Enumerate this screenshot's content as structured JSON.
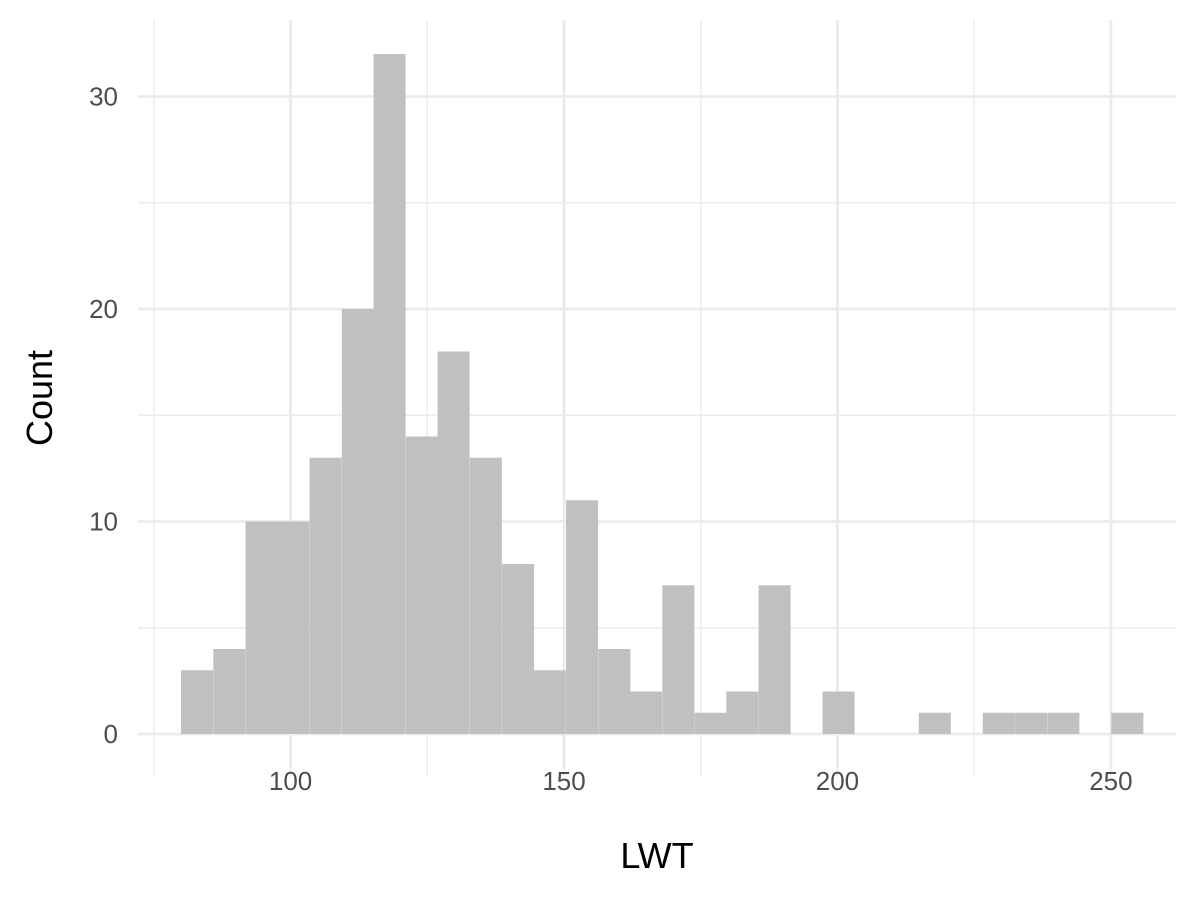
{
  "chart_data": {
    "type": "bar",
    "subtype": "histogram",
    "xlabel": "LWT",
    "ylabel": "Count",
    "xlim": [
      72.1,
      261.9
    ],
    "ylim": [
      -1.6,
      33.6
    ],
    "x_ticks": [
      100,
      150,
      200,
      250
    ],
    "y_ticks": [
      0,
      10,
      20,
      30
    ],
    "bin_width": 5.86,
    "bins": [
      {
        "x": 82.9,
        "count": 3
      },
      {
        "x": 88.8,
        "count": 4
      },
      {
        "x": 94.7,
        "count": 10
      },
      {
        "x": 100.5,
        "count": 10
      },
      {
        "x": 106.4,
        "count": 13
      },
      {
        "x": 112.3,
        "count": 20
      },
      {
        "x": 118.1,
        "count": 32
      },
      {
        "x": 124.0,
        "count": 14
      },
      {
        "x": 129.8,
        "count": 18
      },
      {
        "x": 135.7,
        "count": 13
      },
      {
        "x": 141.6,
        "count": 8
      },
      {
        "x": 147.4,
        "count": 3
      },
      {
        "x": 153.3,
        "count": 11
      },
      {
        "x": 159.2,
        "count": 4
      },
      {
        "x": 165.0,
        "count": 2
      },
      {
        "x": 170.9,
        "count": 7
      },
      {
        "x": 176.8,
        "count": 1
      },
      {
        "x": 182.6,
        "count": 2
      },
      {
        "x": 188.5,
        "count": 7
      },
      {
        "x": 194.3,
        "count": 0
      },
      {
        "x": 200.2,
        "count": 2
      },
      {
        "x": 206.1,
        "count": 0
      },
      {
        "x": 211.9,
        "count": 0
      },
      {
        "x": 217.8,
        "count": 1
      },
      {
        "x": 223.7,
        "count": 0
      },
      {
        "x": 229.5,
        "count": 1
      },
      {
        "x": 235.4,
        "count": 1
      },
      {
        "x": 241.3,
        "count": 1
      },
      {
        "x": 247.1,
        "count": 0
      },
      {
        "x": 253.0,
        "count": 1
      }
    ],
    "bar_color": "#c0c0c0",
    "grid": true,
    "grid_color": "#ebebeb",
    "legend": "none"
  }
}
